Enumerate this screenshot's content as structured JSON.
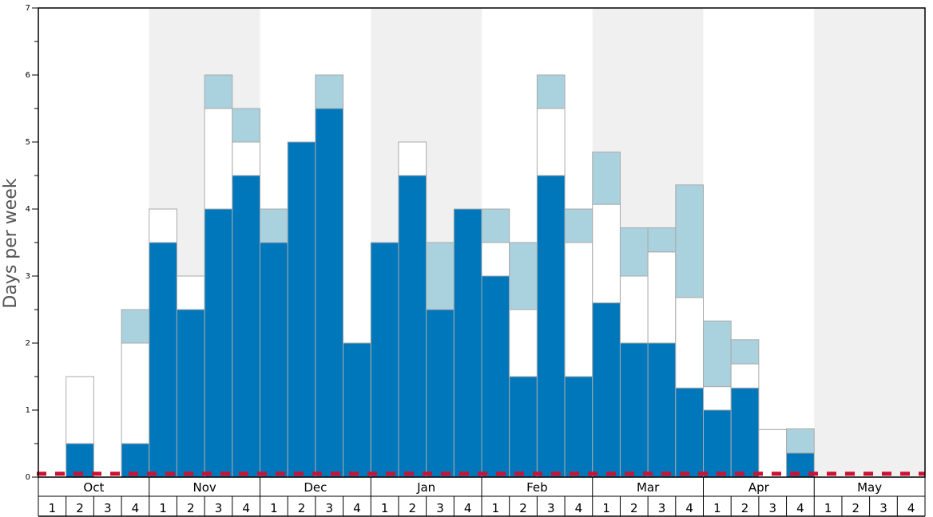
{
  "chart_data": {
    "type": "bar",
    "stacked": true,
    "ylabel": "Days per week",
    "ylim": [
      0,
      7
    ],
    "yticks": [
      "0",
      "1",
      "2",
      "3",
      "4",
      "5",
      "6",
      "7"
    ],
    "months": [
      "Oct",
      "Nov",
      "Dec",
      "Jan",
      "Feb",
      "Mar",
      "Apr",
      "May"
    ],
    "week_labels": [
      "1",
      "2",
      "3",
      "4"
    ],
    "shaded_months": [
      "Nov",
      "Jan",
      "Mar",
      "May"
    ],
    "reference_line": {
      "y": 0.05,
      "style": "dashed",
      "color": "#cc1133"
    },
    "colors": {
      "bottom": "#0077bb",
      "middle": "#ffffff",
      "top": "#aad1de",
      "bar_edge": "#aaaaaa",
      "shade": "#f0f0f0"
    },
    "series": [
      {
        "values": [
          0,
          0.5,
          0,
          0.5,
          3.5,
          2.5,
          4,
          4.5,
          3.5,
          5,
          5.5,
          2,
          3.5,
          4.5,
          2.5,
          4,
          3,
          1.5,
          4.5,
          1.5,
          2.6,
          2,
          2,
          1.33,
          1,
          1.33,
          0,
          0.36,
          0,
          0,
          0,
          0
        ]
      },
      {
        "values": [
          0,
          1,
          0,
          1.5,
          0.5,
          0.5,
          1.5,
          0.5,
          0,
          0,
          0,
          0,
          0,
          0.5,
          0,
          0,
          0.5,
          1,
          1,
          2,
          1.47,
          1,
          1.36,
          1.35,
          0.35,
          0.36,
          0.71,
          0,
          0,
          0,
          0,
          0
        ]
      },
      {
        "values": [
          0,
          0,
          0,
          0.5,
          0,
          0,
          0.5,
          0.5,
          0.5,
          0,
          0.5,
          0,
          0,
          0,
          1,
          0,
          0.5,
          1,
          0.5,
          0.5,
          0.78,
          0.72,
          0.36,
          1.68,
          0.98,
          0.36,
          0,
          0.36,
          0,
          0,
          0,
          0
        ]
      }
    ]
  }
}
